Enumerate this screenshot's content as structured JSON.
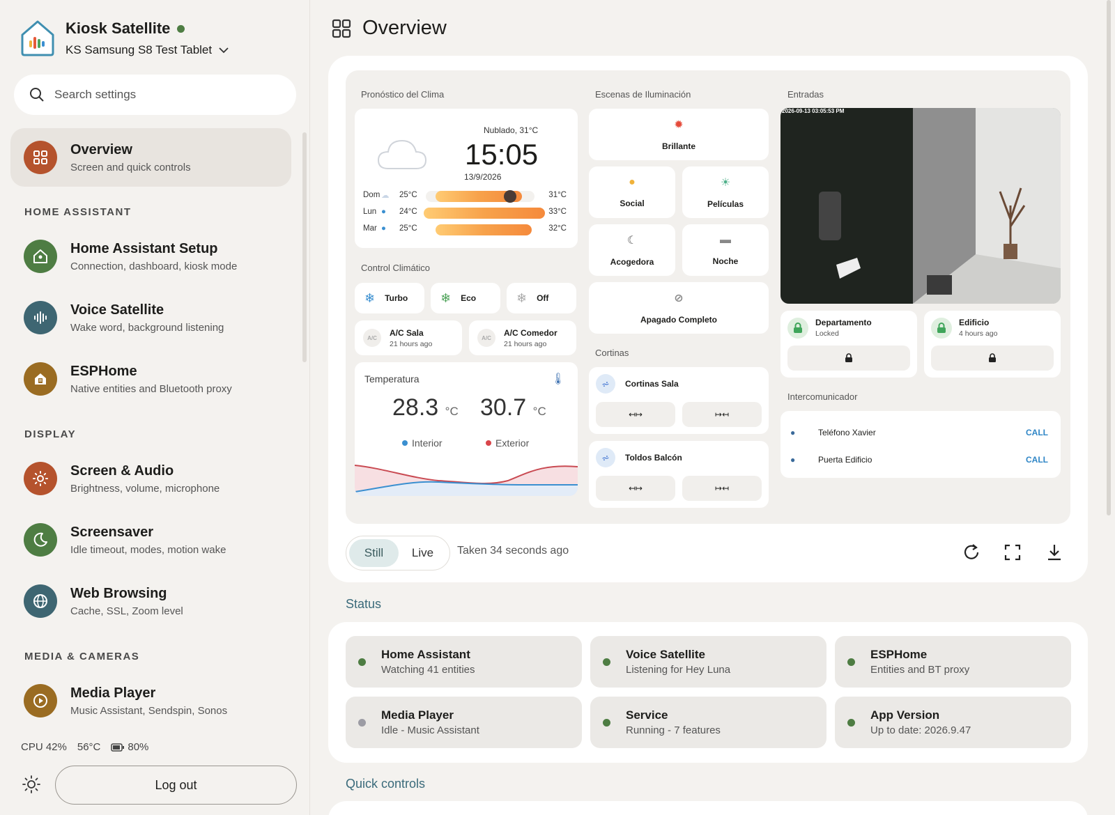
{
  "app": {
    "name": "Kiosk Satellite",
    "device": "KS Samsung S8 Test Tablet"
  },
  "search": {
    "placeholder": "Search settings"
  },
  "nav": {
    "overview": {
      "label": "Overview",
      "sub": "Screen and quick controls"
    },
    "sections": {
      "home_assistant": "HOME ASSISTANT",
      "display": "DISPLAY",
      "media": "MEDIA & CAMERAS"
    },
    "ha_setup": {
      "label": "Home Assistant Setup",
      "sub": "Connection, dashboard, kiosk mode"
    },
    "voice": {
      "label": "Voice Satellite",
      "sub": "Wake word, background listening"
    },
    "esphome": {
      "label": "ESPHome",
      "sub": "Native entities and Bluetooth proxy"
    },
    "screen_audio": {
      "label": "Screen & Audio",
      "sub": "Brightness, volume, microphone"
    },
    "screensaver": {
      "label": "Screensaver",
      "sub": "Idle timeout, modes, motion wake"
    },
    "web": {
      "label": "Web Browsing",
      "sub": "Cache, SSL, Zoom level"
    },
    "media_player": {
      "label": "Media Player",
      "sub": "Music Assistant, Sendspin, Sonos"
    }
  },
  "stats": {
    "cpu": "CPU 42%",
    "temp": "56°C",
    "battery": "80%"
  },
  "logout": "Log out",
  "page": {
    "title": "Overview"
  },
  "dashboard": {
    "weather": {
      "title": "Pronóstico del Clima",
      "condition": "Nublado, 31°C",
      "time": "15:05",
      "date": "13/9/2026",
      "forecast": [
        {
          "day": "Dom",
          "low": "25°C",
          "high": "31°C"
        },
        {
          "day": "Lun",
          "low": "24°C",
          "high": "33°C"
        },
        {
          "day": "Mar",
          "low": "25°C",
          "high": "32°C"
        }
      ]
    },
    "climate": {
      "title": "Control Climático",
      "modes": [
        "Turbo",
        "Eco",
        "Off"
      ],
      "ac": [
        {
          "name": "A/C Sala",
          "time": "21 hours ago"
        },
        {
          "name": "A/C Comedor",
          "time": "21 hours ago"
        }
      ],
      "icon_text": "A/C"
    },
    "temperature": {
      "title": "Temperatura",
      "interior": "28.3",
      "exterior": "30.7",
      "unit": "°C",
      "interior_label": "Interior",
      "exterior_label": "Exterior"
    },
    "scenes": {
      "title": "Escenas de Iluminación",
      "items": [
        "Brillante",
        "Social",
        "Películas",
        "Acogedora",
        "Noche",
        "Apagado Completo"
      ]
    },
    "covers": {
      "title": "Cortinas",
      "items": [
        "Cortinas Sala",
        "Toldos Balcón"
      ]
    },
    "entries": {
      "title": "Entradas",
      "camera_stamp": "2026-09-13 03:05:53 PM",
      "locks": [
        {
          "name": "Departamento",
          "state": "Locked"
        },
        {
          "name": "Edificio",
          "state": "4 hours ago"
        }
      ]
    },
    "intercom": {
      "title": "Intercomunicador",
      "items": [
        "Teléfono Xavier",
        "Puerta Edificio"
      ],
      "call": "CALL"
    }
  },
  "capture": {
    "still": "Still",
    "live": "Live",
    "taken": "Taken 34 seconds ago"
  },
  "status": {
    "title": "Status",
    "items": [
      {
        "label": "Home Assistant",
        "sub": "Watching 41 entities",
        "color": "#4e7d43"
      },
      {
        "label": "Voice Satellite",
        "sub": "Listening for Hey Luna",
        "color": "#4e7d43"
      },
      {
        "label": "ESPHome",
        "sub": "Entities and BT proxy",
        "color": "#4e7d43"
      },
      {
        "label": "Media Player",
        "sub": "Idle - Music Assistant",
        "color": "#9c9ca4"
      },
      {
        "label": "Service",
        "sub": "Running - 7 features",
        "color": "#4e7d43"
      },
      {
        "label": "App Version",
        "sub": "Up to date: 2026.9.47",
        "color": "#4e7d43"
      }
    ]
  },
  "quick_controls": {
    "title": "Quick controls"
  }
}
